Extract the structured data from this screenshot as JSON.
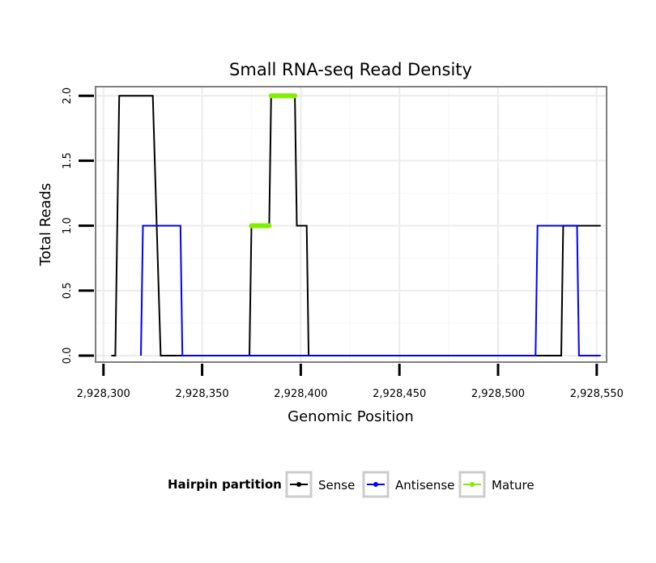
{
  "chart_data": {
    "type": "line",
    "title": "Small RNA-seq Read Density",
    "xlabel": "Genomic Position",
    "ylabel": "Total Reads",
    "xlim": [
      2928296,
      2928555
    ],
    "ylim": [
      -0.05,
      2.07
    ],
    "xticks": [
      2928300,
      2928350,
      2928400,
      2928450,
      2928500,
      2928550
    ],
    "xtick_labels": [
      "2,928,300",
      "2,928,350",
      "2,928,400",
      "2,928,450",
      "2,928,500",
      "2,928,550"
    ],
    "yticks": [
      0,
      0.5,
      1,
      1.5,
      2
    ],
    "ytick_labels": [
      "0.0",
      "0.5",
      "1.0",
      "1.5",
      "2.0"
    ],
    "grid": true,
    "legend": {
      "title": "Hairpin partition",
      "position": "bottom",
      "entries": [
        "Sense",
        "Antisense",
        "Mature"
      ]
    },
    "series": [
      {
        "name": "Sense",
        "color": "#000000",
        "x": [
          2928304,
          2928306,
          2928308,
          2928325,
          2928327,
          2928329,
          2928374,
          2928375,
          2928384,
          2928385,
          2928397,
          2928398,
          2928403,
          2928404,
          2928532,
          2928533,
          2928552
        ],
        "y": [
          0,
          0,
          2,
          2,
          1,
          0,
          0,
          1,
          1,
          2,
          2,
          1,
          1,
          0,
          0,
          1,
          1
        ]
      },
      {
        "name": "Antisense",
        "color": "#0000ff",
        "x": [
          2928319,
          2928320,
          2928339,
          2928340,
          2928519,
          2928520,
          2928540,
          2928541,
          2928552
        ],
        "y": [
          0,
          1,
          1,
          0,
          0,
          1,
          1,
          0,
          0
        ]
      },
      {
        "name": "Mature",
        "color": "#7ff000",
        "segments": [
          {
            "x": [
              2928375,
              2928384
            ],
            "y": 1
          },
          {
            "x": [
              2928385,
              2928397
            ],
            "y": 2
          }
        ]
      }
    ]
  }
}
